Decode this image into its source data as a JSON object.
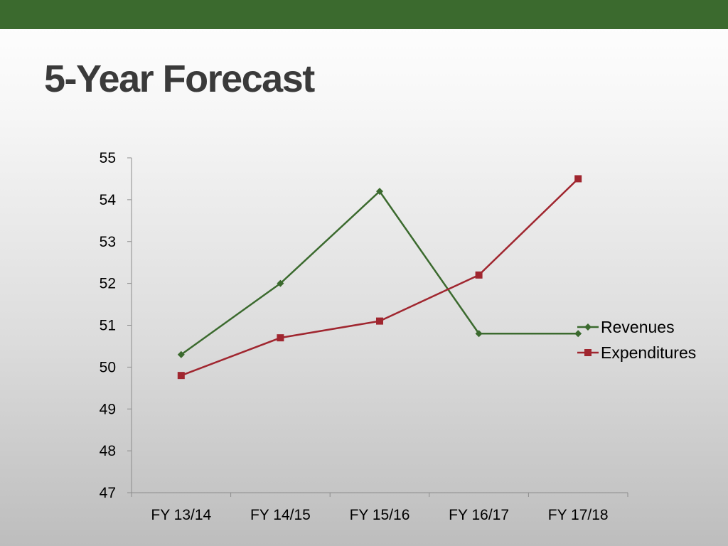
{
  "slide": {
    "title": "5-Year Forecast",
    "top_bar_color": "#3b6a2e"
  },
  "chart_data": {
    "type": "line",
    "categories": [
      "FY 13/14",
      "FY 14/15",
      "FY 15/16",
      "FY 16/17",
      "FY 17/18"
    ],
    "series": [
      {
        "name": "Revenues",
        "values": [
          50.3,
          52.0,
          54.2,
          50.8,
          50.8
        ],
        "color": "#3b6a2e",
        "marker": "diamond"
      },
      {
        "name": "Expenditures",
        "values": [
          49.8,
          50.7,
          51.1,
          52.2,
          54.5
        ],
        "color": "#a0262f",
        "marker": "square"
      }
    ],
    "ylim": [
      47,
      55
    ],
    "yticks": [
      47,
      48,
      49,
      50,
      51,
      52,
      53,
      54,
      55
    ],
    "grid": false,
    "legend_position": "right"
  }
}
